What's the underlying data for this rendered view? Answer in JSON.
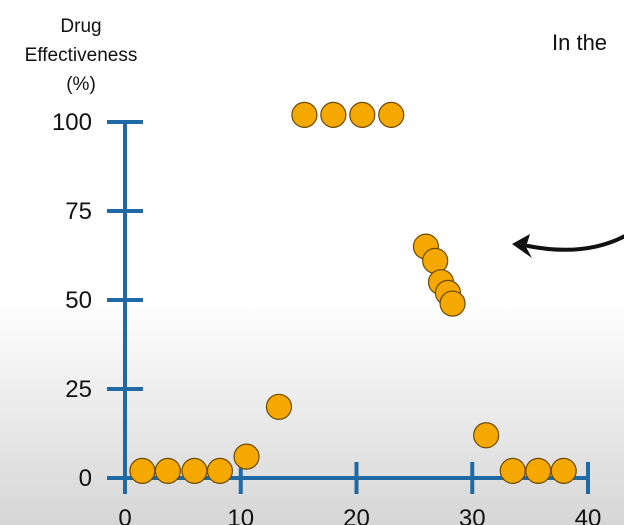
{
  "chart_data": {
    "type": "scatter",
    "ylabel_lines": [
      "Drug",
      "Effectiveness",
      "(%)"
    ],
    "xlabel": "",
    "xlim": [
      0,
      40
    ],
    "ylim": [
      0,
      100
    ],
    "x_ticks": [
      0,
      10,
      20,
      30,
      40
    ],
    "y_ticks": [
      0,
      25,
      50,
      75,
      100
    ],
    "grid": false,
    "points": [
      {
        "x": 1.5,
        "y": 2
      },
      {
        "x": 3.7,
        "y": 2
      },
      {
        "x": 6.0,
        "y": 2
      },
      {
        "x": 8.2,
        "y": 2
      },
      {
        "x": 10.5,
        "y": 6
      },
      {
        "x": 13.3,
        "y": 20
      },
      {
        "x": 15.5,
        "y": 102
      },
      {
        "x": 18.0,
        "y": 102
      },
      {
        "x": 20.5,
        "y": 102
      },
      {
        "x": 23.0,
        "y": 102
      },
      {
        "x": 26.0,
        "y": 65
      },
      {
        "x": 26.8,
        "y": 61
      },
      {
        "x": 27.3,
        "y": 55
      },
      {
        "x": 27.9,
        "y": 52
      },
      {
        "x": 28.3,
        "y": 49
      },
      {
        "x": 31.2,
        "y": 12
      },
      {
        "x": 33.5,
        "y": 2
      },
      {
        "x": 35.7,
        "y": 2
      },
      {
        "x": 37.9,
        "y": 2
      }
    ],
    "colors": {
      "axis": "#1f6aa5",
      "point_fill": "#f5a800",
      "point_stroke": "#6b4a00",
      "arrow": "#111111"
    }
  },
  "annotation": {
    "text": "In the"
  }
}
